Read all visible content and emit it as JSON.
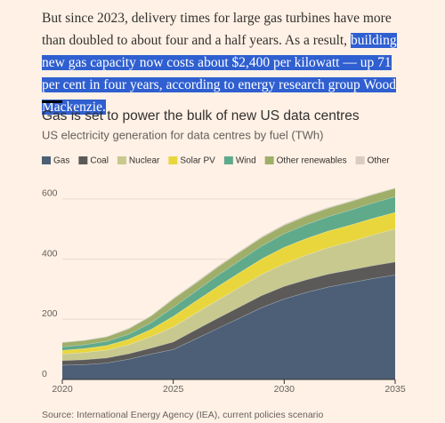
{
  "article": {
    "paragraph_plain": "But since 2023, delivery times for large gas turbines have more than doubled to about four and a half years. As a result, ",
    "paragraph_highlighted": "building new gas capacity now costs about $2,400 per kilowatt — up 71 per cent in four years, according to energy research group Wood Mackenzie."
  },
  "chart_data": {
    "type": "stacked_area",
    "title": "Gas is set to power the bulk of new US data centres",
    "subtitle": "US electricity generation for data centres by fuel (TWh)",
    "source": "Source: International Energy Agency (IEA), current policies scenario",
    "x": [
      2020,
      2021,
      2022,
      2023,
      2024,
      2025,
      2026,
      2027,
      2028,
      2029,
      2030,
      2031,
      2032,
      2033,
      2034,
      2035
    ],
    "xlim": [
      2020,
      2035
    ],
    "xticks": [
      2020,
      2025,
      2030,
      2035
    ],
    "ylim": [
      0,
      650
    ],
    "yticks": [
      0,
      200,
      400,
      600
    ],
    "grid": true,
    "series": [
      {
        "name": "Gas",
        "color": "#4c5f77",
        "values": [
          48,
          50,
          55,
          68,
          85,
          100,
          135,
          170,
          205,
          240,
          268,
          290,
          308,
          322,
          336,
          348
        ]
      },
      {
        "name": "Coal",
        "color": "#5b5a58",
        "values": [
          15,
          16,
          17,
          18,
          20,
          25,
          30,
          34,
          37,
          40,
          42,
          42,
          43,
          43,
          43,
          43
        ]
      },
      {
        "name": "Nuclear",
        "color": "#c8c98e",
        "values": [
          22,
          24,
          26,
          30,
          38,
          50,
          55,
          60,
          65,
          70,
          75,
          82,
          88,
          94,
          102,
          110
        ]
      },
      {
        "name": "Solar PV",
        "color": "#e9d63c",
        "values": [
          12,
          13,
          15,
          18,
          24,
          35,
          40,
          45,
          49,
          52,
          55,
          55,
          55,
          55,
          55,
          55
        ]
      },
      {
        "name": "Wind",
        "color": "#5faa8b",
        "values": [
          12,
          13,
          14,
          17,
          22,
          30,
          33,
          37,
          40,
          43,
          45,
          47,
          48,
          50,
          51,
          52
        ]
      },
      {
        "name": "Other renewables",
        "color": "#9fae69",
        "values": [
          14,
          14,
          15,
          18,
          22,
          28,
          27,
          28,
          28,
          28,
          28,
          28,
          28,
          28,
          28,
          28
        ]
      },
      {
        "name": "Other",
        "color": "#d9ccc1",
        "values": [
          2,
          2,
          2,
          3,
          3,
          4,
          4,
          4,
          4,
          4,
          4,
          4,
          4,
          3,
          3,
          2
        ]
      }
    ]
  }
}
